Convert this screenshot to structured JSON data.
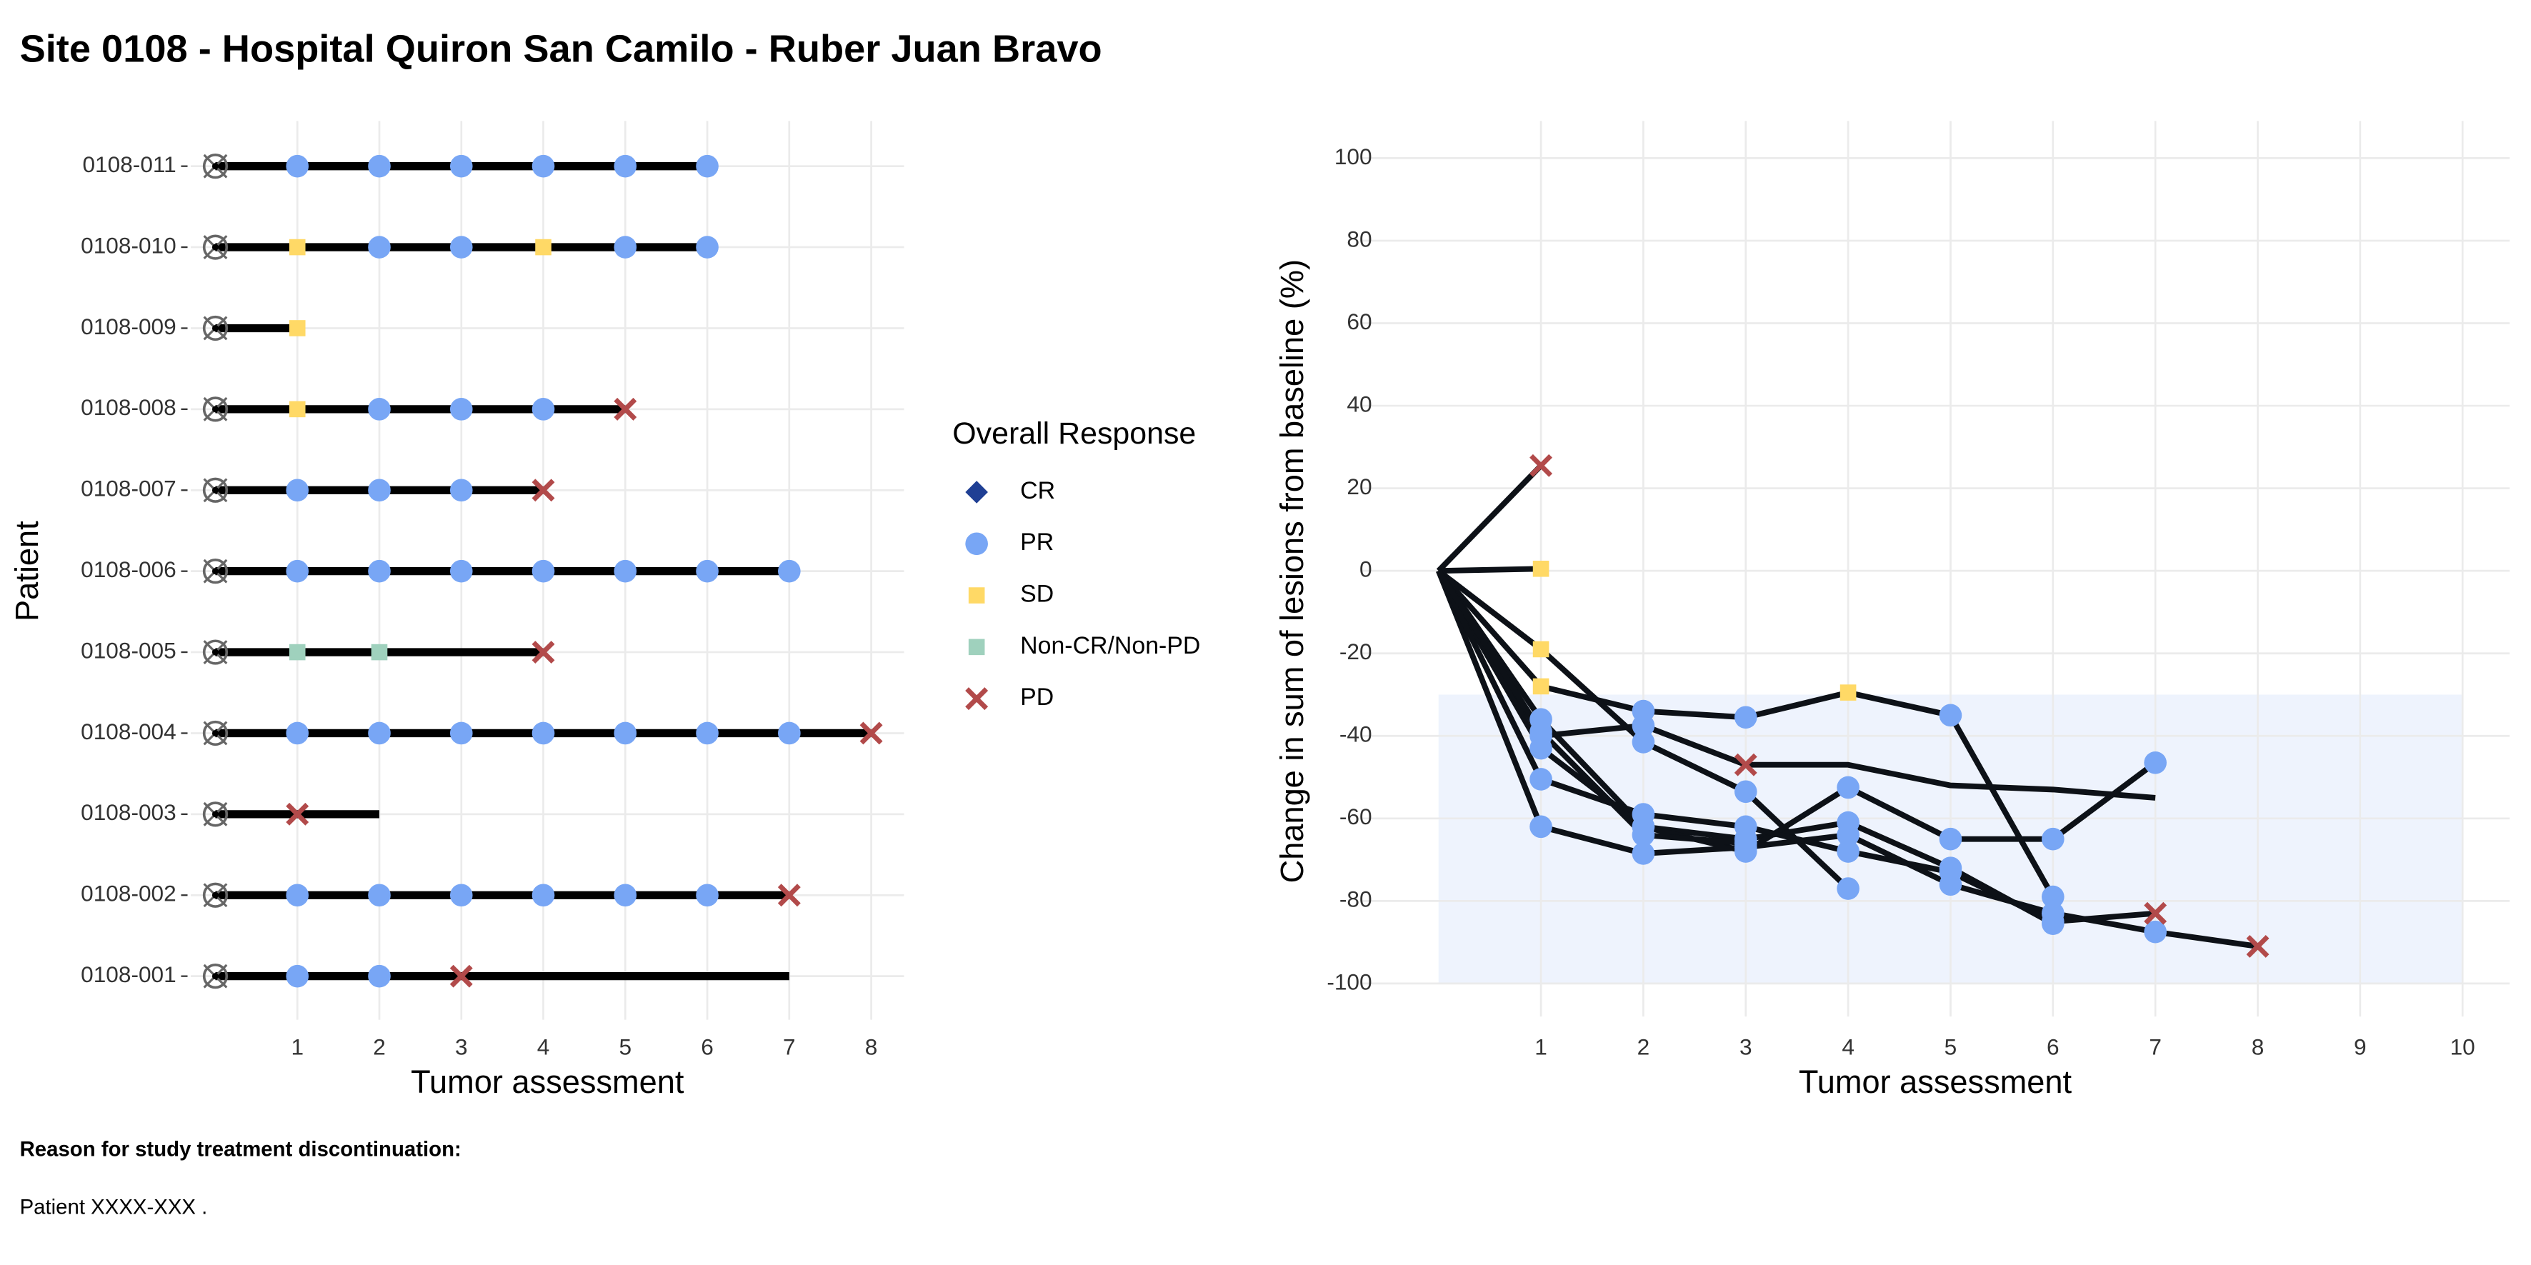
{
  "title": "Site 0108 - Hospital Quiron San Camilo - Ruber Juan Bravo",
  "chart_data": [
    {
      "type": "swimmer",
      "xlabel": "Tumor assessment",
      "ylabel": "Patient",
      "categories": [
        "0108-011",
        "0108-010",
        "0108-009",
        "0108-008",
        "0108-007",
        "0108-006",
        "0108-005",
        "0108-004",
        "0108-003",
        "0108-002",
        "0108-001"
      ],
      "values": [
        6,
        6,
        1,
        5,
        4,
        7,
        4,
        8,
        2,
        7,
        7
      ],
      "assessments": [
        [
          1,
          2,
          3,
          4,
          5,
          6
        ],
        [
          1,
          2,
          3,
          4,
          5,
          6
        ],
        [
          1
        ],
        [
          1,
          2,
          3,
          4,
          5
        ],
        [
          1,
          2,
          3,
          4
        ],
        [
          1,
          2,
          3,
          4,
          5,
          6,
          7
        ],
        [
          1,
          2,
          4
        ],
        [
          1,
          2,
          3,
          4,
          5,
          6,
          7,
          8
        ],
        [
          1
        ],
        [
          1,
          2,
          3,
          4,
          5,
          6,
          7
        ],
        [
          1,
          2,
          3
        ]
      ],
      "responses": [
        [
          "PR",
          "PR",
          "PR",
          "PR",
          "PR",
          "PR"
        ],
        [
          "SD",
          "PR",
          "PR",
          "SD",
          "PR",
          "PR"
        ],
        [
          "SD"
        ],
        [
          "SD",
          "PR",
          "PR",
          "PR",
          "PD"
        ],
        [
          "PR",
          "PR",
          "PR",
          "PD"
        ],
        [
          "PR",
          "PR",
          "PR",
          "PR",
          "PR",
          "PR",
          "PR"
        ],
        [
          "Non-CR/Non-PD",
          "Non-CR/Non-PD",
          "PD"
        ],
        [
          "PR",
          "PR",
          "PR",
          "PR",
          "PR",
          "PR",
          "PR",
          "PD"
        ],
        [
          "PD"
        ],
        [
          "PR",
          "PR",
          "PR",
          "PR",
          "PR",
          "PR",
          "PD"
        ],
        [
          "PR",
          "PR",
          "PD"
        ]
      ],
      "xlim": [
        -0.3,
        8.4
      ],
      "xticks": [
        1,
        2,
        3,
        4,
        5,
        6,
        7,
        8
      ],
      "grid": true,
      "bar_color": "#000000",
      "legend": {
        "title": "Overall Response",
        "items": [
          {
            "name": "CR",
            "color": "#1f3f94",
            "shape": "diamond"
          },
          {
            "name": "PR",
            "color": "#78a6f5",
            "shape": "circle"
          },
          {
            "name": "SD",
            "color": "#ffd966",
            "shape": "square"
          },
          {
            "name": "Non-CR/Non-PD",
            "color": "#9fd1bd",
            "shape": "square"
          },
          {
            "name": "PD",
            "color": "#b24a4a",
            "shape": "cross"
          }
        ]
      }
    },
    {
      "type": "line",
      "xlabel": "Tumor assessment",
      "ylabel": "Change in sum of lesions from baseline (%)",
      "color": "#0d1117",
      "band": {
        "x": [
          0,
          10
        ],
        "y": [
          -100,
          -30
        ],
        "color": "#eef3fd"
      },
      "series": [
        {
          "x": [
            0,
            1
          ],
          "values": [
            0,
            25.5
          ],
          "responses": [
            null,
            "PD"
          ]
        },
        {
          "x": [
            0,
            1
          ],
          "values": [
            0,
            0.5
          ],
          "responses": [
            null,
            "SD"
          ]
        },
        {
          "x": [
            0,
            1,
            2,
            3,
            4,
            5,
            6
          ],
          "values": [
            0,
            -28,
            -34,
            -35.5,
            -29.5,
            -35,
            -79
          ],
          "responses": [
            null,
            "SD",
            "PR",
            "PR",
            "SD",
            "PR",
            "PR"
          ]
        },
        {
          "x": [
            0,
            1,
            2,
            3,
            4,
            5,
            6,
            7
          ],
          "values": [
            0,
            -40,
            -37.5,
            -47,
            -47,
            -52,
            -53,
            -55
          ],
          "responses": [
            null,
            "PR",
            "PR",
            "PD",
            null,
            null,
            null,
            null
          ]
        },
        {
          "x": [
            0,
            1,
            2,
            3,
            4
          ],
          "values": [
            0,
            -19,
            -41.5,
            -53.5,
            -77
          ],
          "responses": [
            null,
            "SD",
            "PR",
            "PR",
            "PR"
          ]
        },
        {
          "x": [
            0,
            1,
            2,
            3,
            4,
            5,
            6
          ],
          "values": [
            0,
            -36,
            -62,
            -65,
            -61,
            -72,
            -85.5
          ],
          "responses": [
            null,
            "PR",
            "PR",
            "PR",
            "PR",
            "PR",
            "PR"
          ]
        },
        {
          "x": [
            0,
            1,
            2,
            3,
            4,
            5,
            6,
            7
          ],
          "values": [
            0,
            -43,
            -62,
            -68,
            -52.5,
            -65,
            -65,
            -46.5
          ],
          "responses": [
            null,
            "PR",
            "PR",
            "PR",
            "PR",
            "PR",
            "PR",
            "PR"
          ]
        },
        {
          "x": [
            0,
            1,
            2,
            3,
            4,
            5,
            6,
            7,
            8
          ],
          "values": [
            0,
            -62,
            -68.5,
            -67,
            -64,
            -76,
            -83,
            -87.5,
            -91
          ],
          "responses": [
            null,
            "PR",
            "PR",
            "PR",
            "PR",
            "PR",
            "PR",
            "PR",
            "PD"
          ]
        },
        {
          "x": [
            0,
            1,
            2,
            3,
            4,
            5,
            6,
            7
          ],
          "values": [
            0,
            -50.5,
            -59,
            -62,
            -68,
            -73,
            -85,
            -83
          ],
          "responses": [
            null,
            "PR",
            "PR",
            "PR",
            "PR",
            "PR",
            "PR",
            "PD"
          ]
        },
        {
          "x": [
            0,
            1,
            2,
            3
          ],
          "values": [
            0,
            -39,
            -64,
            -66
          ],
          "responses": [
            null,
            "PR",
            "PR",
            "PR"
          ]
        }
      ],
      "xlim": [
        -0.76,
        10.46
      ],
      "xticks": [
        1,
        2,
        3,
        4,
        5,
        6,
        7,
        8,
        9,
        10
      ],
      "ylim": [
        -108,
        109
      ],
      "yticks": [
        -100,
        -80,
        -60,
        -40,
        -20,
        0,
        20,
        40,
        60,
        80,
        100
      ],
      "grid": true
    }
  ],
  "footer": {
    "heading": "Reason for study treatment discontinuation:",
    "text": "Patient XXXX-XXX ."
  }
}
